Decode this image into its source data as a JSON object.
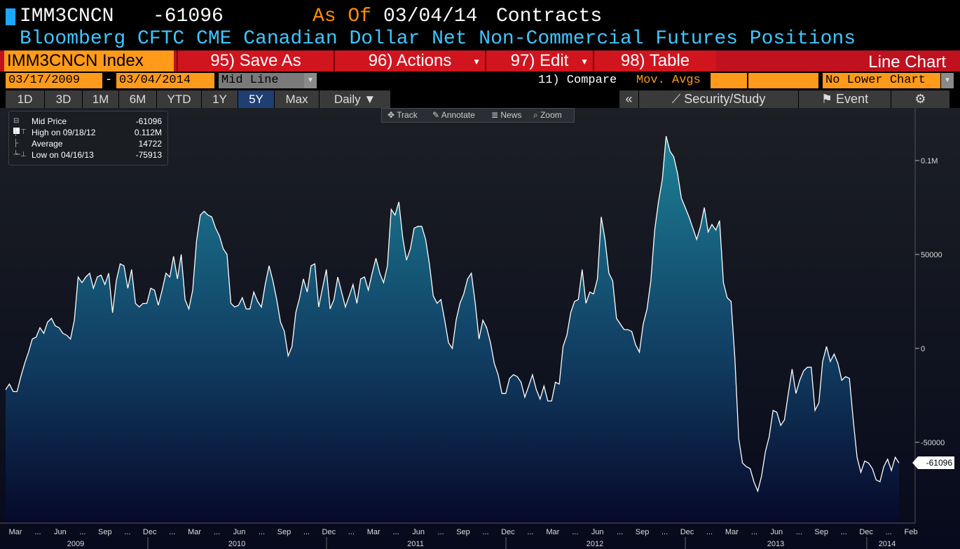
{
  "header": {
    "ticker": "IMM3CNCN",
    "last_value": "-61096",
    "as_of_label": "As Of",
    "as_of_date": "03/04/14",
    "units": "Contracts",
    "description": "Bloomberg CFTC CME Canadian Dollar Net Non-Commercial Futures Positions"
  },
  "command_bar": {
    "security": "IMM3CNCN Index",
    "save_as": "95) Save As",
    "actions": "96) Actions",
    "edit": "97) Edit",
    "table": "98) Table",
    "chart_type": "Line Chart"
  },
  "range": {
    "start": "03/17/2009",
    "separator": "-",
    "end": "03/04/2014",
    "mode": "Mid Line",
    "compare": "11) Compare",
    "mov_avgs": "Mov. Avgs",
    "lower_chart": "No Lower Chart"
  },
  "period_tabs": [
    "1D",
    "3D",
    "1M",
    "6M",
    "YTD",
    "1Y",
    "5Y",
    "Max"
  ],
  "active_period": "5Y",
  "frequency": "Daily",
  "right_tabs": {
    "collapse": "«",
    "security_study": "Security/Study",
    "event": "Event"
  },
  "chart_tools": [
    "Track",
    "Annotate",
    "News",
    "Zoom"
  ],
  "legend": {
    "mid_label": "Mid Price",
    "mid_value": "-61096",
    "high_label": "High on 09/18/12",
    "high_value": "0.112M",
    "avg_label": "Average",
    "avg_value": "14722",
    "low_label": "Low on 04/16/13",
    "low_value": "-75913"
  },
  "last_tag": "-61096",
  "colors": {
    "accent": "#ff9a1a",
    "command": "#c0111f",
    "title": "#3ec7ff",
    "fill_top": "#1b7f95",
    "fill_bottom": "#0a0a2a"
  },
  "chart_data": {
    "type": "area",
    "ylim": [
      -93000,
      128000
    ],
    "y_ticks": [
      100000,
      50000,
      0,
      -50000
    ],
    "y_tick_labels": [
      "0.1M",
      "50000",
      "0",
      "-50000"
    ],
    "month_labels": [
      "Mar",
      "Jun",
      "Sep",
      "Dec",
      "Mar",
      "Jun",
      "Sep",
      "Dec",
      "Mar",
      "Jun",
      "Sep",
      "Dec",
      "Mar",
      "Jun",
      "Sep",
      "Dec",
      "Mar",
      "Jun",
      "Sep",
      "Dec",
      "Feb"
    ],
    "year_labels": [
      "2009",
      "2010",
      "2011",
      "2012",
      "2013",
      "2014"
    ],
    "values": [
      -22000,
      -19000,
      -23000,
      -23000,
      -15000,
      -8000,
      -2000,
      5000,
      6000,
      11000,
      8000,
      14000,
      16000,
      12000,
      11000,
      8000,
      7000,
      5000,
      15000,
      38000,
      35000,
      38000,
      40000,
      32000,
      38000,
      39000,
      34000,
      40000,
      19000,
      36000,
      45000,
      44000,
      32000,
      42000,
      24000,
      22000,
      24000,
      24000,
      32000,
      31000,
      23000,
      31000,
      40000,
      38000,
      49000,
      37000,
      50000,
      26000,
      21000,
      31000,
      57000,
      71000,
      73000,
      71000,
      70000,
      64000,
      60000,
      53000,
      50000,
      24000,
      22000,
      23000,
      27000,
      21000,
      21000,
      30000,
      25000,
      22000,
      34000,
      44000,
      36000,
      26000,
      14000,
      9000,
      -4000,
      1000,
      19000,
      27000,
      37000,
      30000,
      44000,
      45000,
      22000,
      32000,
      42000,
      21000,
      26000,
      38000,
      30000,
      22000,
      28000,
      34000,
      24000,
      37000,
      38000,
      31000,
      40000,
      48000,
      40000,
      35000,
      44000,
      74000,
      71000,
      78000,
      59000,
      47000,
      53000,
      64000,
      65000,
      65000,
      58000,
      45000,
      28000,
      24000,
      26000,
      15000,
      3000,
      0,
      15000,
      24000,
      29000,
      37000,
      40000,
      24000,
      5000,
      15000,
      11000,
      3000,
      -8000,
      -14000,
      -24000,
      -24000,
      -16000,
      -14000,
      -15000,
      -18000,
      -26000,
      -20000,
      -14000,
      -22000,
      -27000,
      -20000,
      -28000,
      -28000,
      -18000,
      -19000,
      1000,
      7000,
      19000,
      25000,
      26000,
      42000,
      24000,
      30000,
      29000,
      37000,
      70000,
      58000,
      40000,
      36000,
      16000,
      13000,
      10000,
      10000,
      9000,
      2000,
      -2000,
      13000,
      21000,
      36000,
      63000,
      78000,
      90000,
      113000,
      105000,
      102000,
      93000,
      80000,
      75000,
      70000,
      64000,
      58000,
      65000,
      75000,
      62000,
      66000,
      63000,
      68000,
      35000,
      27000,
      25000,
      -5000,
      -48000,
      -61000,
      -63000,
      -64000,
      -71000,
      -76000,
      -68000,
      -55000,
      -47000,
      -33000,
      -34000,
      -41000,
      -38000,
      -24000,
      -11000,
      -24000,
      -17000,
      -12000,
      -10000,
      -10000,
      -33000,
      -29000,
      -7000,
      1000,
      -7000,
      -3000,
      -8000,
      -17000,
      -15000,
      -16000,
      -38000,
      -58000,
      -66000,
      -60000,
      -61000,
      -64000,
      -70000,
      -71000,
      -63000,
      -59000,
      -65000,
      -58000,
      -61000
    ]
  }
}
